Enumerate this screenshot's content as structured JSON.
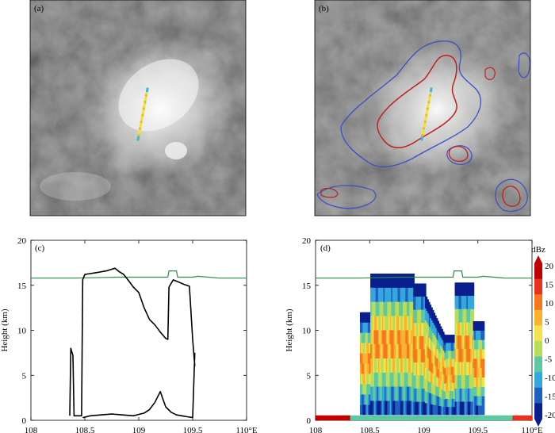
{
  "panels": {
    "a": {
      "label": "(a)"
    },
    "b": {
      "label": "(b)"
    },
    "c": {
      "label": "(c)"
    },
    "d": {
      "label": "(d)"
    }
  },
  "colorbar": {
    "title": "dBz",
    "ticks": [
      "20",
      "15",
      "10",
      "5",
      "0",
      "-5",
      "-10",
      "-15",
      "-20"
    ],
    "colors": [
      "#c00000",
      "#e8321e",
      "#f5781e",
      "#fbb230",
      "#f2e34a",
      "#b8dd5a",
      "#5ec8a0",
      "#34a8dc",
      "#1f60c0",
      "#0a1f8f"
    ]
  },
  "chart_data": [
    {
      "panel": "c",
      "type": "line",
      "ylabel": "Height (km)",
      "xlabel": "",
      "xlim": [
        108,
        110
      ],
      "ylim": [
        0,
        20
      ],
      "xticks": [
        "108",
        "108.5",
        "109",
        "109.5",
        "110°E"
      ],
      "yticks": [
        "0",
        "5",
        "10",
        "15",
        "20"
      ],
      "series": [
        {
          "role": "tropopause",
          "color": "#2f8a4a",
          "x": [
            108,
            108.4,
            108.8,
            109.0,
            109.27,
            109.28,
            109.35,
            109.36,
            109.5,
            109.55,
            109.75,
            110
          ],
          "y": [
            15.8,
            15.8,
            15.9,
            15.9,
            15.9,
            16.6,
            16.6,
            15.9,
            15.9,
            16.0,
            15.8,
            15.8
          ]
        },
        {
          "role": "cloud top",
          "color": "#000000",
          "x": [
            108.36,
            108.37,
            108.39,
            108.4,
            108.47,
            108.48,
            108.5,
            108.55,
            108.6,
            108.7,
            108.78,
            108.82,
            108.86,
            108.9,
            108.95,
            109.0,
            109.05,
            109.1,
            109.15,
            109.2,
            109.25,
            109.27,
            109.28,
            109.32,
            109.38,
            109.42,
            109.47,
            109.5,
            109.52
          ],
          "y": [
            0.5,
            8.0,
            7.2,
            0.5,
            0.5,
            15.6,
            16.2,
            16.3,
            16.4,
            16.6,
            16.9,
            16.5,
            16.2,
            15.6,
            14.8,
            14.2,
            12.5,
            11.2,
            10.6,
            9.8,
            9.1,
            9.0,
            14.8,
            15.6,
            15.3,
            15.1,
            14.9,
            9.0,
            6.0
          ]
        },
        {
          "role": "cloud base",
          "color": "#000000",
          "x": [
            108.48,
            108.55,
            108.65,
            108.75,
            108.85,
            108.95,
            109.05,
            109.1,
            109.15,
            109.2,
            109.22,
            109.25,
            109.3,
            109.35,
            109.4,
            109.45,
            109.5,
            109.52
          ],
          "y": [
            0.3,
            0.5,
            0.6,
            0.7,
            0.6,
            0.5,
            0.8,
            1.2,
            2.0,
            3.2,
            2.5,
            1.5,
            0.9,
            0.6,
            0.5,
            0.4,
            0.3,
            7.5
          ]
        }
      ]
    },
    {
      "panel": "d",
      "type": "heatmap",
      "ylabel": "Height (km)",
      "xlabel": "",
      "xlim": [
        108,
        110
      ],
      "ylim": [
        0,
        20
      ],
      "xticks": [
        "108",
        "108.5",
        "109",
        "109.5",
        "110°E"
      ],
      "yticks": [
        "0",
        "5",
        "10",
        "15",
        "20"
      ],
      "colorbar_units": "dBz",
      "colorbar_range": [
        -20,
        20
      ],
      "tropopause": {
        "x": [
          108,
          108.4,
          108.8,
          109.0,
          109.27,
          109.28,
          109.35,
          109.36,
          109.5,
          109.55,
          109.75,
          110
        ],
        "y": [
          15.8,
          15.8,
          15.9,
          15.9,
          15.9,
          16.6,
          16.6,
          15.9,
          15.9,
          16.0,
          15.8,
          15.8
        ]
      }
    }
  ]
}
